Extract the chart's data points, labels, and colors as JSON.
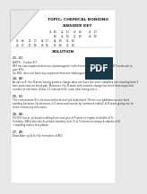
{
  "title": "TOPIC: CHEMICAL BONDING",
  "section1": "ANSWER KEY",
  "section2": "SOLUTION",
  "bg_color": "#e8e8e8",
  "page_color": "#ffffff",
  "text_color": "#333333",
  "title_color": "#222222",
  "pdf_bg": "#1a3a4a",
  "pdf_text": "#ffffff",
  "answer_key_lines": [
    [
      "21.",
      "(B)",
      "22.",
      "(C)",
      "23.",
      "(A)",
      "25.",
      "(C)"
    ],
    [
      "",
      "",
      "(B)",
      "",
      "24.",
      "(B)",
      "25.",
      "(B)",
      "26.",
      "(B)"
    ],
    [
      "11.",
      "(A)",
      "13.",
      "(C)",
      "14.",
      "(C)",
      "14.",
      "(B)",
      "15.",
      "(B)"
    ],
    [
      "26.",
      "(C)",
      "17.",
      "(B)",
      "18.",
      "(B)",
      "19.",
      "(B)",
      "20.",
      "(B)"
    ]
  ],
  "font_size_title": 3.2,
  "font_size_section": 3.2,
  "font_size_body": 2.0,
  "font_size_ans": 2.0,
  "font_size_pdf": 7.0
}
